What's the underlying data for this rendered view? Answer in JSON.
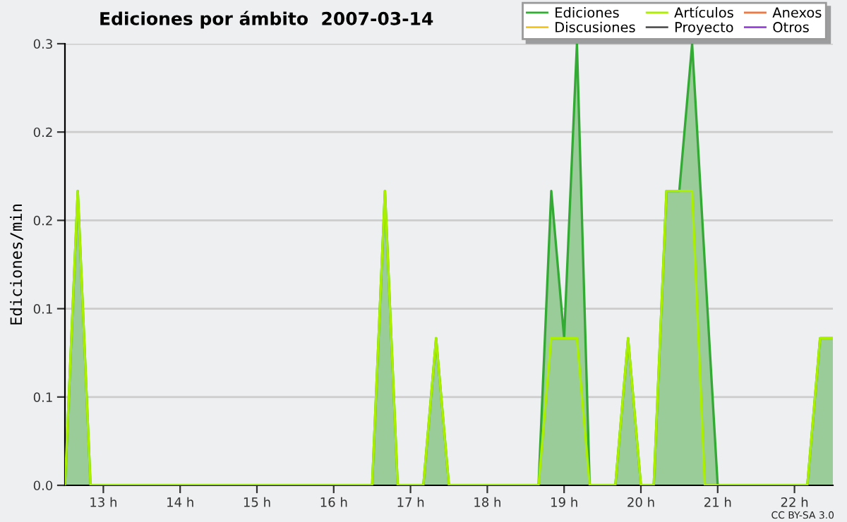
{
  "chart_data": {
    "type": "area",
    "title": "Ediciones por ámbito  2007-03-14",
    "ylabel": "Ediciones/min",
    "xlim": [
      12.5,
      22.5
    ],
    "ylim": [
      0,
      0.3
    ],
    "xticks": [
      {
        "value": 13,
        "label": "13 h"
      },
      {
        "value": 14,
        "label": "14 h"
      },
      {
        "value": 15,
        "label": "15 h"
      },
      {
        "value": 16,
        "label": "16 h"
      },
      {
        "value": 17,
        "label": "17 h"
      },
      {
        "value": 18,
        "label": "18 h"
      },
      {
        "value": 19,
        "label": "19 h"
      },
      {
        "value": 20,
        "label": "20 h"
      },
      {
        "value": 21,
        "label": "21 h"
      },
      {
        "value": 22,
        "label": "22 h"
      }
    ],
    "yticks": [
      {
        "value": 0,
        "label": "0.0"
      },
      {
        "value": 0.06,
        "label": "0.1"
      },
      {
        "value": 0.12,
        "label": "0.1"
      },
      {
        "value": 0.18,
        "label": "0.2"
      },
      {
        "value": 0.24,
        "label": "0.2"
      },
      0.3
    ],
    "grid": "y",
    "legend": "top right",
    "series": [
      {
        "name": "Ediciones",
        "color": "#33aa33",
        "x": [
          12.5,
          12.667,
          12.833,
          16.5,
          16.667,
          16.833,
          17.167,
          17.333,
          17.5,
          18.667,
          18.833,
          19.0,
          19.167,
          19.333,
          19.667,
          19.833,
          20.0,
          20.167,
          20.333,
          20.5,
          20.667,
          20.833,
          21.0,
          22.167,
          22.333,
          22.5
        ],
        "values": [
          0,
          0.2,
          0,
          0,
          0.2,
          0,
          0,
          0.1,
          0,
          0,
          0.2,
          0.1,
          0.3,
          0,
          0,
          0.1,
          0,
          0,
          0.2,
          0.2,
          0.3,
          0.15,
          0,
          0,
          0.1,
          0.1
        ]
      },
      {
        "name": "Discusiones",
        "type": "line",
        "color": "#f5c518"
      },
      {
        "name": "Artículos",
        "type": "line",
        "color": "#aaee00",
        "x": [
          12.5,
          12.667,
          12.833,
          16.5,
          16.667,
          16.833,
          17.167,
          17.333,
          17.5,
          18.667,
          18.833,
          19.0,
          19.167,
          19.333,
          19.667,
          19.833,
          20.0,
          20.167,
          20.333,
          20.5,
          20.667,
          20.833,
          22.167,
          22.333,
          22.5
        ],
        "values": [
          0,
          0.2,
          0,
          0,
          0.2,
          0,
          0,
          0.1,
          0,
          0,
          0.1,
          0.1,
          0.1,
          0,
          0,
          0.1,
          0,
          0,
          0.2,
          0.2,
          0.2,
          0,
          0,
          0.1,
          0.1
        ]
      },
      {
        "name": "Proyecto",
        "type": "line",
        "color": "#555555"
      },
      {
        "name": "Anexos",
        "type": "line",
        "color": "#ee7744"
      },
      {
        "name": "Otros",
        "type": "line",
        "color": "#9944dd"
      }
    ],
    "annotations": [
      "CC BY-SA 3.0"
    ]
  }
}
